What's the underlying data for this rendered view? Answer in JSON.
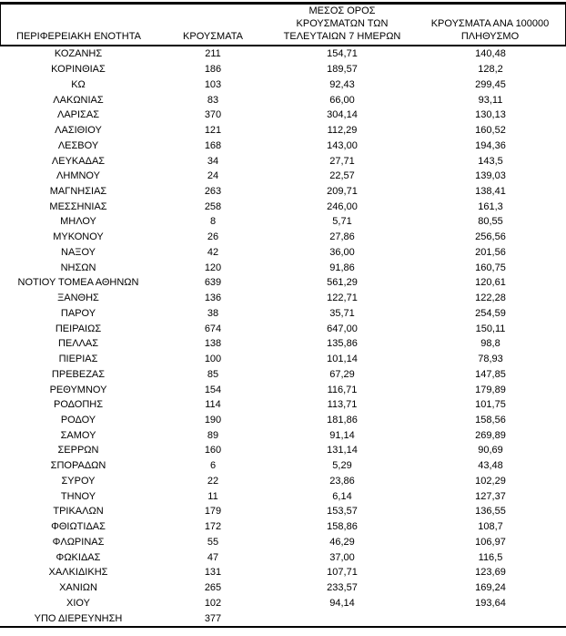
{
  "table": {
    "headers": [
      "ΠΕΡΙΦΕΡΕΙΑΚΗ ΕΝΟΤΗΤΑ",
      "ΚΡΟΥΣΜΑΤΑ",
      "ΜΕΣΟΣ ΟΡΟΣ\nΚΡΟΥΣΜΑΤΩΝ ΤΩΝ\nΤΕΛΕΥΤΑΙΩΝ 7 ΗΜΕΡΩΝ",
      "ΚΡΟΥΣΜΑΤΑ ΑΝΑ 100000\nΠΛΗΘΥΣΜΟ"
    ],
    "rows": [
      [
        "ΚΟΖΑΝΗΣ",
        "211",
        "154,71",
        "140,48"
      ],
      [
        "ΚΟΡΙΝΘΙΑΣ",
        "186",
        "189,57",
        "128,2"
      ],
      [
        "ΚΩ",
        "103",
        "92,43",
        "299,45"
      ],
      [
        "ΛΑΚΩΝΙΑΣ",
        "83",
        "66,00",
        "93,11"
      ],
      [
        "ΛΑΡΙΣΑΣ",
        "370",
        "304,14",
        "130,13"
      ],
      [
        "ΛΑΣΙΘΙΟΥ",
        "121",
        "112,29",
        "160,52"
      ],
      [
        "ΛΕΣΒΟΥ",
        "168",
        "143,00",
        "194,36"
      ],
      [
        "ΛΕΥΚΑΔΑΣ",
        "34",
        "27,71",
        "143,5"
      ],
      [
        "ΛΗΜΝΟΥ",
        "24",
        "22,57",
        "139,03"
      ],
      [
        "ΜΑΓΝΗΣΙΑΣ",
        "263",
        "209,71",
        "138,41"
      ],
      [
        "ΜΕΣΣΗΝΙΑΣ",
        "258",
        "246,00",
        "161,3"
      ],
      [
        "ΜΗΛΟΥ",
        "8",
        "5,71",
        "80,55"
      ],
      [
        "ΜΥΚΟΝΟΥ",
        "26",
        "27,86",
        "256,56"
      ],
      [
        "ΝΑΞΟΥ",
        "42",
        "36,00",
        "201,56"
      ],
      [
        "ΝΗΣΩΝ",
        "120",
        "91,86",
        "160,75"
      ],
      [
        "ΝΟΤΙΟΥ ΤΟΜΕΑ ΑΘΗΝΩΝ",
        "639",
        "561,29",
        "120,61"
      ],
      [
        "ΞΑΝΘΗΣ",
        "136",
        "122,71",
        "122,28"
      ],
      [
        "ΠΑΡΟΥ",
        "38",
        "35,71",
        "254,59"
      ],
      [
        "ΠΕΙΡΑΙΩΣ",
        "674",
        "647,00",
        "150,11"
      ],
      [
        "ΠΕΛΛΑΣ",
        "138",
        "135,86",
        "98,8"
      ],
      [
        "ΠΙΕΡΙΑΣ",
        "100",
        "101,14",
        "78,93"
      ],
      [
        "ΠΡΕΒΕΖΑΣ",
        "85",
        "67,29",
        "147,85"
      ],
      [
        "ΡΕΘΥΜΝΟΥ",
        "154",
        "116,71",
        "179,89"
      ],
      [
        "ΡΟΔΟΠΗΣ",
        "114",
        "113,71",
        "101,75"
      ],
      [
        "ΡΟΔΟΥ",
        "190",
        "181,86",
        "158,56"
      ],
      [
        "ΣΑΜΟΥ",
        "89",
        "91,14",
        "269,89"
      ],
      [
        "ΣΕΡΡΩΝ",
        "160",
        "131,14",
        "90,69"
      ],
      [
        "ΣΠΟΡΑΔΩΝ",
        "6",
        "5,29",
        "43,48"
      ],
      [
        "ΣΥΡΟΥ",
        "22",
        "23,86",
        "102,29"
      ],
      [
        "ΤΗΝΟΥ",
        "11",
        "6,14",
        "127,37"
      ],
      [
        "ΤΡΙΚΑΛΩΝ",
        "179",
        "153,57",
        "136,55"
      ],
      [
        "ΦΘΙΩΤΙΔΑΣ",
        "172",
        "158,86",
        "108,7"
      ],
      [
        "ΦΛΩΡΙΝΑΣ",
        "55",
        "46,29",
        "106,97"
      ],
      [
        "ΦΩΚΙΔΑΣ",
        "47",
        "37,00",
        "116,5"
      ],
      [
        "ΧΑΛΚΙΔΙΚΗΣ",
        "131",
        "107,71",
        "123,69"
      ],
      [
        "ΧΑΝΙΩΝ",
        "265",
        "233,57",
        "169,24"
      ],
      [
        "ΧΙΟΥ",
        "102",
        "94,14",
        "193,64"
      ],
      [
        "ΥΠΟ ΔΙΕΡΕΥΝΗΣΗ",
        "377",
        "",
        ""
      ]
    ]
  },
  "colors": {
    "text": "#000000",
    "background": "#ffffff",
    "border": "#000000"
  }
}
